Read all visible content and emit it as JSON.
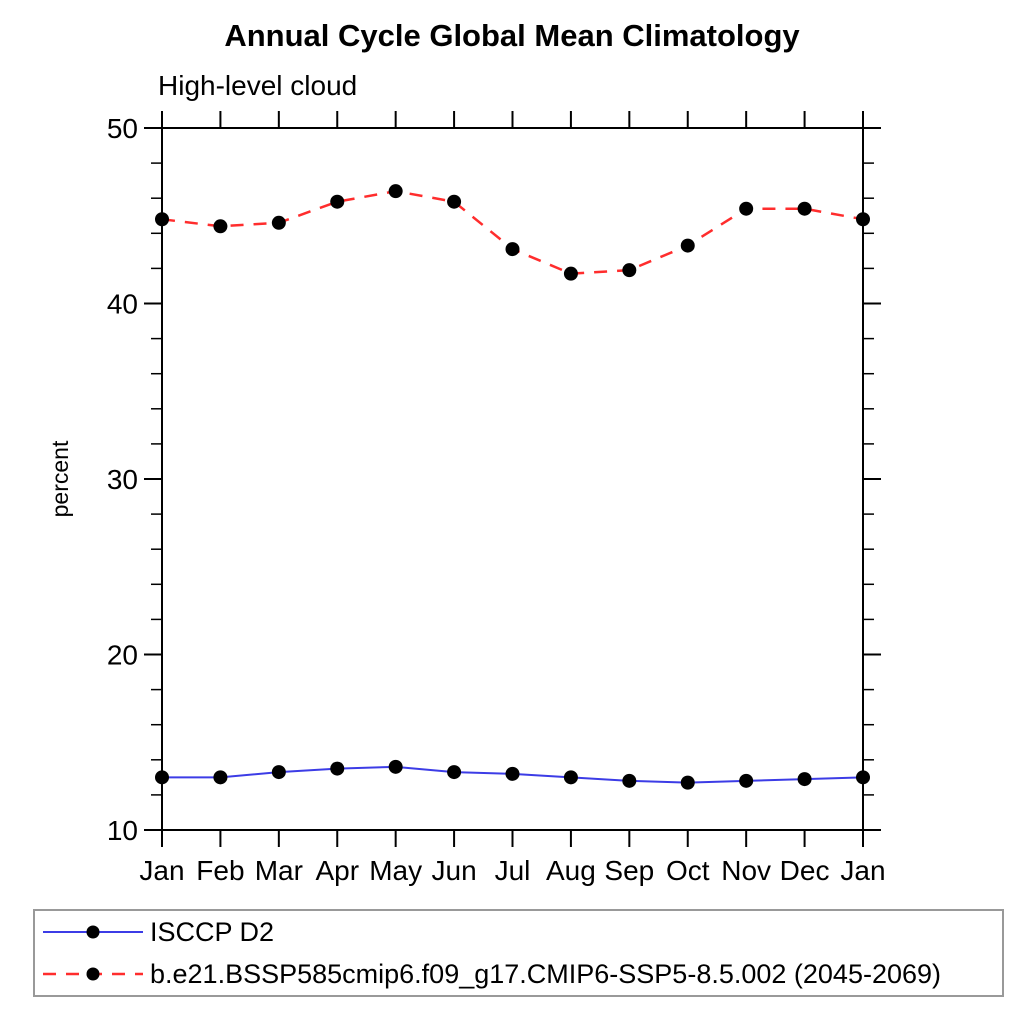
{
  "chart_data": {
    "type": "line",
    "title": "Annual Cycle Global Mean Climatology",
    "subtitle": "High-level cloud",
    "ylabel": "percent",
    "xlabel": "",
    "categories": [
      "Jan",
      "Feb",
      "Mar",
      "Apr",
      "May",
      "Jun",
      "Jul",
      "Aug",
      "Sep",
      "Oct",
      "Nov",
      "Dec",
      "Jan"
    ],
    "ylim": [
      10,
      50
    ],
    "y_major_ticks": [
      10,
      20,
      30,
      40,
      50
    ],
    "y_minor_step": 2,
    "grid": false,
    "legend_position": "bottom",
    "axis_color": "#000000",
    "marker_color": "#000000",
    "series": [
      {
        "name": "ISCCP D2",
        "color": "#3c3ce6",
        "line_style": "solid",
        "marker": "filled-circle",
        "values": [
          13.0,
          13.0,
          13.3,
          13.5,
          13.6,
          13.3,
          13.2,
          13.0,
          12.8,
          12.7,
          12.8,
          12.9,
          13.0
        ]
      },
      {
        "name": "b.e21.BSSP585cmip6.f09_g17.CMIP6-SSP5-8.5.002 (2045-2069)",
        "color": "#ff2d2d",
        "line_style": "dashed",
        "marker": "filled-circle",
        "values": [
          44.8,
          44.4,
          44.6,
          45.8,
          46.4,
          45.8,
          43.1,
          41.7,
          41.9,
          43.3,
          45.4,
          45.4,
          44.8
        ]
      }
    ]
  }
}
